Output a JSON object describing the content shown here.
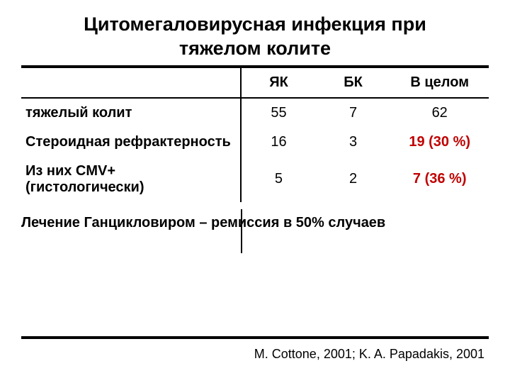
{
  "title_line1": "Цитомегаловирусная инфекция при",
  "title_line2": "тяжелом колите",
  "table": {
    "columns": [
      "",
      "ЯК",
      "БК",
      "В целом"
    ],
    "rows": [
      {
        "label": "тяжелый колит",
        "c1": "55",
        "c2": "7",
        "total": "62",
        "total_red": false
      },
      {
        "label": "Стероидная рефрактерность",
        "c1": "16",
        "c2": "3",
        "total": "19 (30 %)",
        "total_red": true
      },
      {
        "label": "Из них CMV+  (гистологически)",
        "c1": "5",
        "c2": "2",
        "total": "7 (36 %)",
        "total_red": true
      }
    ]
  },
  "note": "Лечение Ганцикловиром – ремиссия в 50% случаев",
  "citation": "M. Cottone, 2001; K. A. Papadakis, 2001",
  "colors": {
    "text": "#000000",
    "emphasis_red": "#c00000",
    "background": "#ffffff",
    "rule": "#000000"
  },
  "fonts": {
    "title_pt": 27,
    "body_pt": 20,
    "citation_pt": 18,
    "family": "Arial"
  }
}
